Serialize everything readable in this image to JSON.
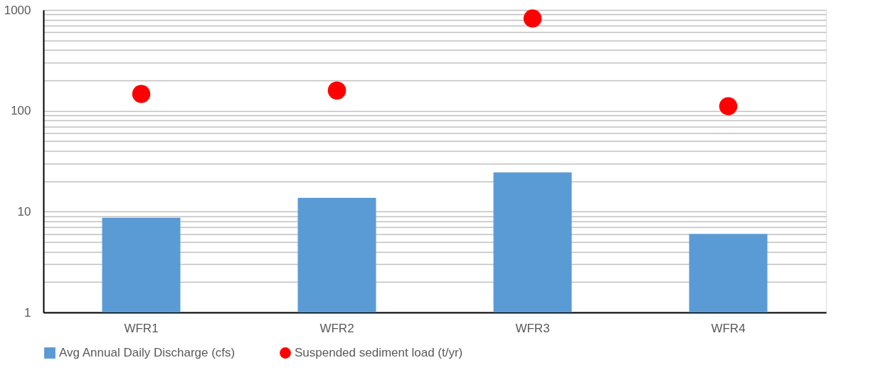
{
  "chart_data": {
    "type": "bar",
    "categories": [
      "WFR1",
      "WFR2",
      "WFR3",
      "WFR4"
    ],
    "series": [
      {
        "name": "Avg Annual Daily Discharge (cfs)",
        "color": "#5b9bd5",
        "values": [
          8.7,
          13.7,
          24.5,
          6.0
        ]
      },
      {
        "name": "Suspended sediment load (t/yr)",
        "color": "#ff0000",
        "type": "scatter",
        "values": [
          147,
          159,
          822,
          111
        ]
      }
    ],
    "log": "y",
    "ylim": [
      1,
      1000
    ],
    "yticks": [
      1,
      {
        "value": 2,
        "label": null
      },
      {
        "value": 3,
        "label": null
      },
      {
        "value": 4,
        "label": null
      },
      {
        "value": 5,
        "label": null
      },
      {
        "value": 6,
        "label": null
      },
      {
        "value": 7,
        "label": null
      },
      {
        "value": 8,
        "label": null
      },
      {
        "value": 9,
        "label": null
      },
      10,
      {
        "value": 20,
        "label": null
      },
      {
        "value": 30,
        "label": null
      },
      {
        "value": 40,
        "label": null
      },
      {
        "value": 50,
        "label": null
      },
      {
        "value": 60,
        "label": null
      },
      {
        "value": 70,
        "label": null
      },
      {
        "value": 80,
        "label": null
      },
      {
        "value": 90,
        "label": null
      },
      100,
      {
        "value": 200,
        "label": null
      },
      {
        "value": 300,
        "label": null
      },
      {
        "value": 400,
        "label": null
      },
      {
        "value": 500,
        "label": null
      },
      {
        "value": 600,
        "label": null
      },
      {
        "value": 700,
        "label": null
      },
      {
        "value": 800,
        "label": null
      },
      {
        "value": 900,
        "label": null
      },
      1000
    ],
    "grid": "y",
    "legend": "bottom",
    "marker": "circle"
  }
}
